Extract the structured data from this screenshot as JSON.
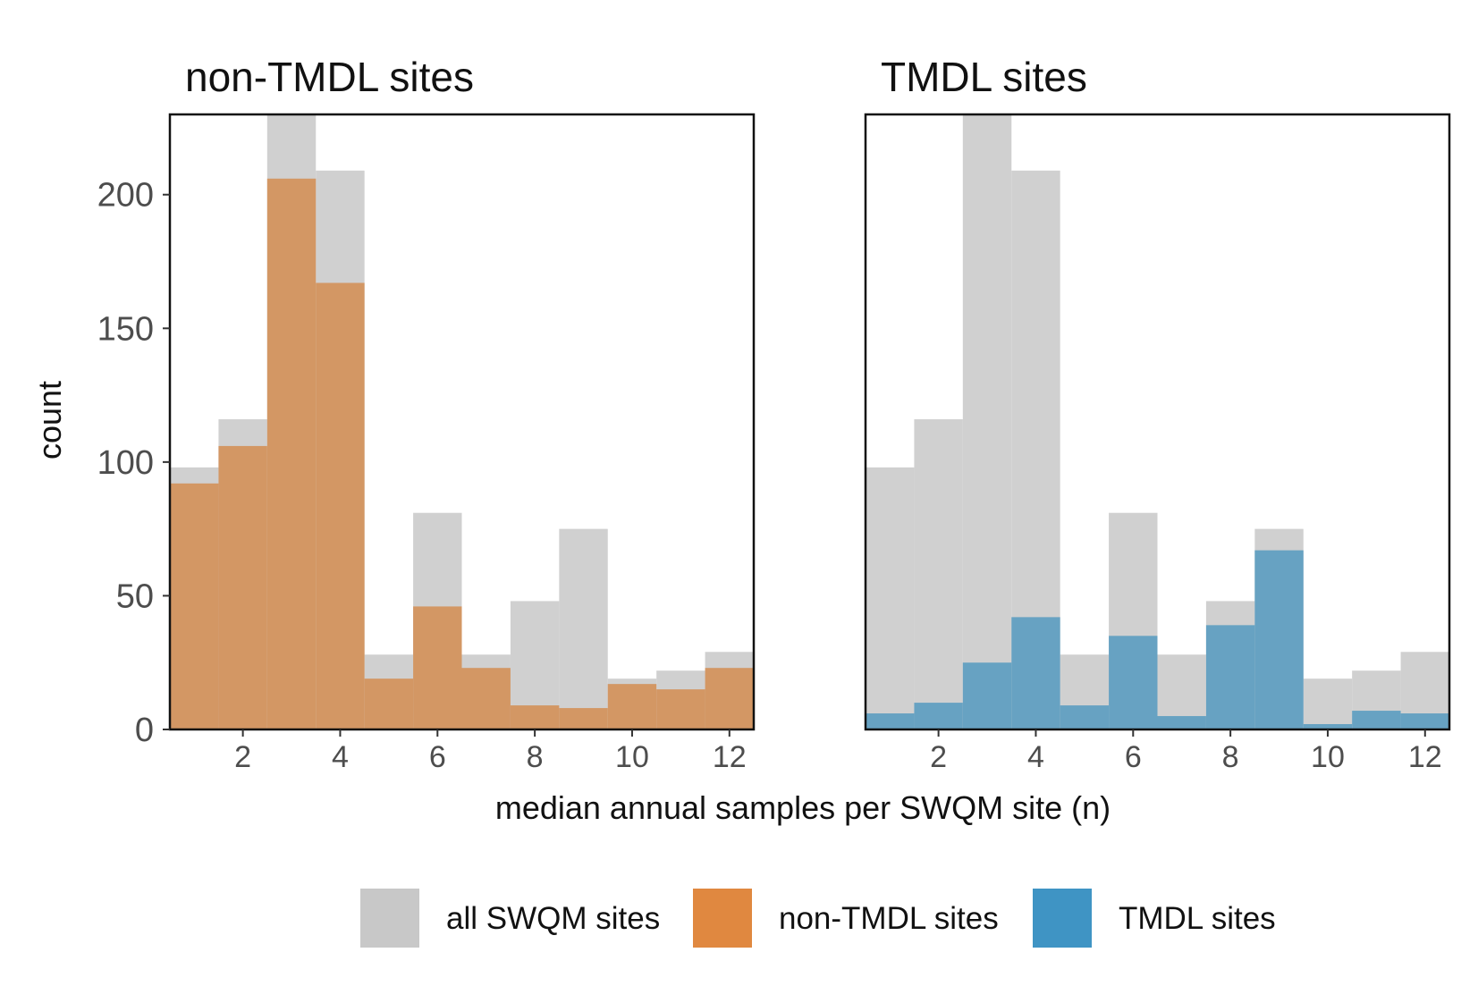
{
  "chart_data": {
    "type": "bar",
    "subtype": "overlaid histogram, two facets",
    "xlabel": "median annual samples per SWQM site (n)",
    "ylabel": "count",
    "xlim": [
      0.5,
      12.5
    ],
    "ylim": [
      0,
      230
    ],
    "x_ticks": [
      2,
      4,
      6,
      8,
      10,
      12
    ],
    "y_ticks": [
      0,
      50,
      100,
      150,
      200
    ],
    "bins": [
      1,
      2,
      3,
      4,
      5,
      6,
      7,
      8,
      9,
      10,
      11,
      12
    ],
    "grid": false,
    "legend_position": "bottom",
    "legend": [
      {
        "label": "all SWQM sites",
        "color": "#c8c8c8"
      },
      {
        "label": "non-TMDL sites",
        "color": "#e08840"
      },
      {
        "label": "TMDL sites",
        "color": "#3f94c4"
      }
    ],
    "panels": [
      {
        "title": "non-TMDL sites",
        "series": [
          {
            "name": "all SWQM sites",
            "color": "#d0d0d0",
            "values": [
              98,
              116,
              230,
              209,
              28,
              81,
              28,
              48,
              75,
              19,
              22,
              29
            ]
          },
          {
            "name": "non-TMDL sites",
            "color": "#d39764",
            "values": [
              92,
              106,
              206,
              167,
              19,
              46,
              23,
              9,
              8,
              17,
              15,
              23
            ]
          }
        ]
      },
      {
        "title": "TMDL sites",
        "series": [
          {
            "name": "all SWQM sites",
            "color": "#d0d0d0",
            "values": [
              98,
              116,
              230,
              209,
              28,
              81,
              28,
              48,
              75,
              19,
              22,
              29
            ]
          },
          {
            "name": "TMDL sites",
            "color": "#67a2c2",
            "values": [
              6,
              10,
              25,
              42,
              9,
              35,
              5,
              39,
              67,
              2,
              7,
              6
            ]
          }
        ]
      }
    ]
  }
}
